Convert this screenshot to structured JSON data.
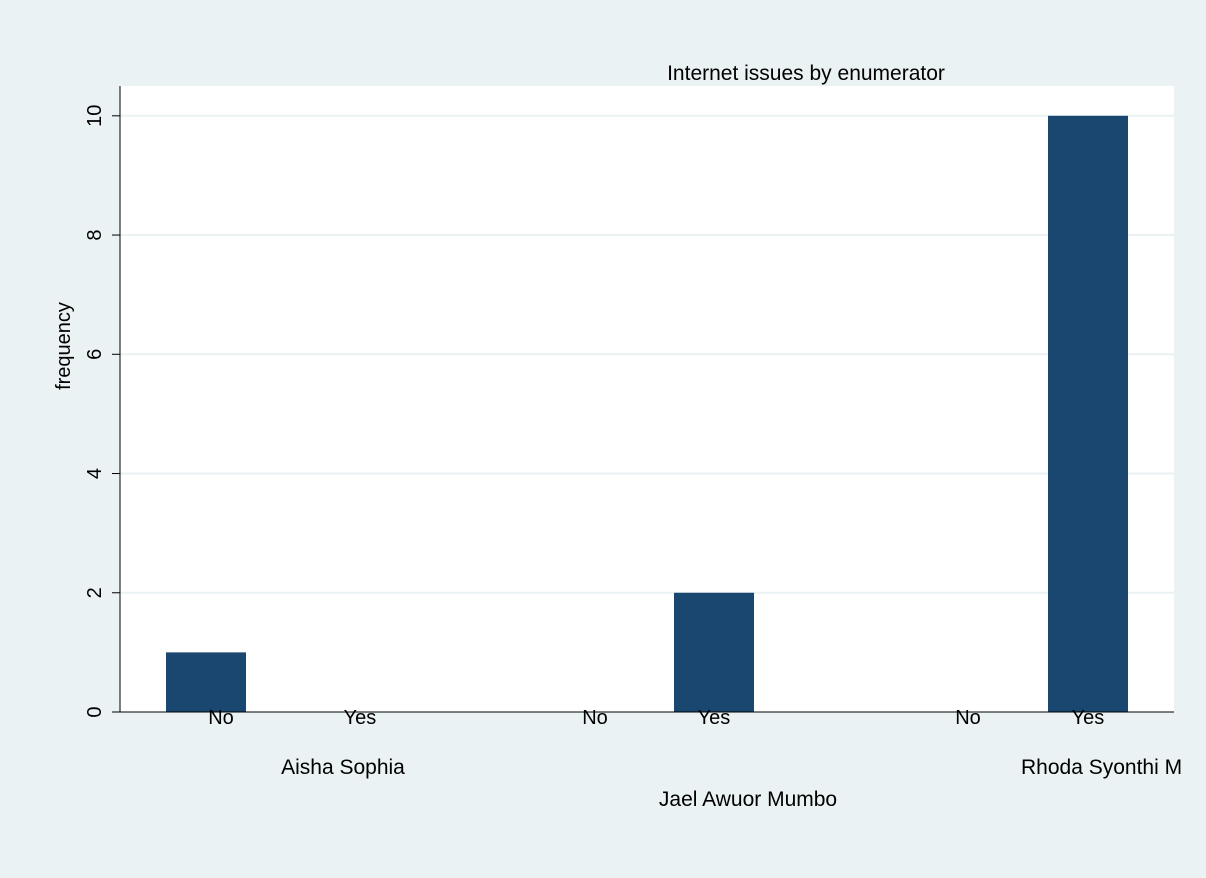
{
  "chart_data": {
    "type": "bar",
    "title": "Internet issues by enumerator",
    "ylabel": "frequency",
    "xlabel": "",
    "ylim": [
      0,
      10.5
    ],
    "yticks": [
      0,
      2,
      4,
      6,
      8,
      10
    ],
    "grid": true,
    "legend": "none",
    "bar_color": "#1a476f",
    "groups": [
      {
        "name": "Aisha Sophia",
        "bars": [
          {
            "label": "No",
            "value": 1
          },
          {
            "label": "Yes",
            "value": 0
          }
        ]
      },
      {
        "name": "Jael Awuor Mumbo",
        "bars": [
          {
            "label": "No",
            "value": 0
          },
          {
            "label": "Yes",
            "value": 2
          }
        ]
      },
      {
        "name": "Rhoda Syonthi M",
        "bars": [
          {
            "label": "No",
            "value": 0
          },
          {
            "label": "Yes",
            "value": 10
          }
        ]
      }
    ]
  }
}
